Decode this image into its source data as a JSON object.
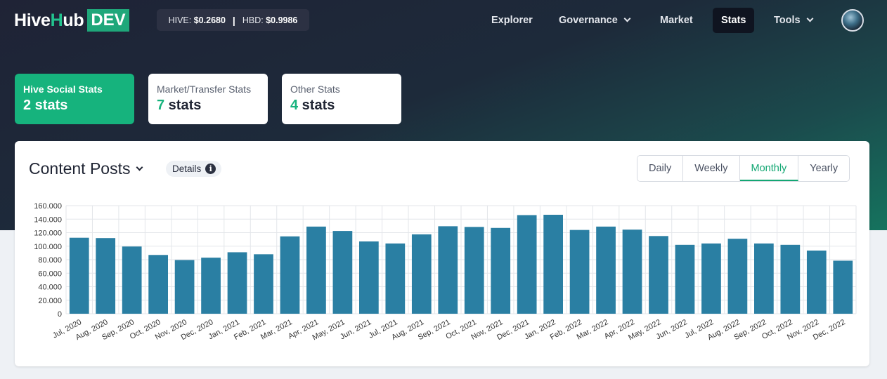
{
  "header": {
    "logo": {
      "part1": "Hive",
      "part2": "H",
      "part3": "ub",
      "badge": "DEV"
    },
    "prices": {
      "hive_label": "HIVE:",
      "hive_value": "$0.2680",
      "separator": "|",
      "hbd_label": "HBD:",
      "hbd_value": "$0.9986"
    },
    "nav": [
      {
        "label": "Explorer",
        "has_dropdown": false,
        "active": false
      },
      {
        "label": "Governance",
        "has_dropdown": true,
        "active": false
      },
      {
        "label": "Market",
        "has_dropdown": false,
        "active": false
      },
      {
        "label": "Stats",
        "has_dropdown": false,
        "active": true
      },
      {
        "label": "Tools",
        "has_dropdown": true,
        "active": false
      }
    ],
    "avatar_icon": "user-avatar"
  },
  "stat_cards": [
    {
      "label": "Hive Social Stats",
      "count": "2",
      "suffix": " stats",
      "active": true
    },
    {
      "label": "Market/Transfer Stats",
      "count": "7",
      "suffix": " stats",
      "active": false
    },
    {
      "label": "Other Stats",
      "count": "4",
      "suffix": " stats",
      "active": false
    }
  ],
  "panel": {
    "title": "Content Posts",
    "details_label": "Details",
    "details_icon": "info-icon",
    "periods": [
      "Daily",
      "Weekly",
      "Monthly",
      "Yearly"
    ],
    "active_period": "Monthly"
  },
  "colors": {
    "accent": "#16b37d",
    "bar": "#2a7fa3",
    "nav_active_bg": "#0f1420"
  },
  "chart_data": {
    "type": "bar",
    "title": "",
    "xlabel": "",
    "ylabel": "",
    "ylim": [
      0,
      160000
    ],
    "yticks": [
      "0",
      "20.000",
      "40.000",
      "60.000",
      "80.000",
      "100.000",
      "120.000",
      "140.000",
      "160.000"
    ],
    "ytick_values": [
      0,
      20000,
      40000,
      60000,
      80000,
      100000,
      120000,
      140000,
      160000
    ],
    "grid": true,
    "categories": [
      "Jul, 2020",
      "Aug, 2020",
      "Sep, 2020",
      "Oct, 2020",
      "Nov, 2020",
      "Dec, 2020",
      "Jan, 2021",
      "Feb, 2021",
      "Mar, 2021",
      "Apr, 2021",
      "May, 2021",
      "Jun, 2021",
      "Jul, 2021",
      "Aug, 2021",
      "Sep, 2021",
      "Oct, 2021",
      "Nov, 2021",
      "Dec, 2021",
      "Jan, 2022",
      "Feb, 2022",
      "Mar, 2022",
      "Apr, 2022",
      "May, 2022",
      "Jun, 2022",
      "Jul, 2022",
      "Aug, 2022",
      "Sep, 2022",
      "Oct, 2022",
      "Nov, 2022",
      "Dec, 2022"
    ],
    "values": [
      112500,
      112000,
      99500,
      87000,
      79500,
      83000,
      91000,
      88000,
      114500,
      129000,
      122500,
      107000,
      104000,
      117500,
      129500,
      128500,
      127000,
      146000,
      146500,
      124000,
      129000,
      124500,
      115000,
      102000,
      104000,
      111000,
      104000,
      102000,
      93500,
      78500
    ]
  }
}
